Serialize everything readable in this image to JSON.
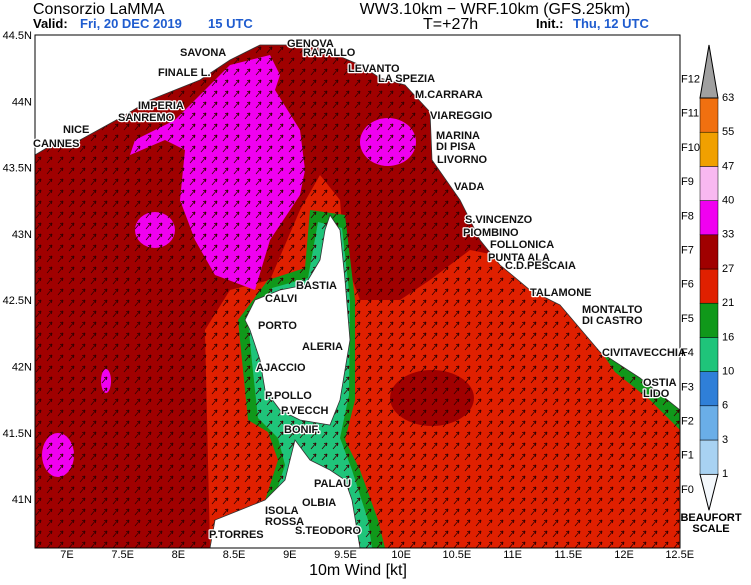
{
  "header": {
    "title": "Consorzio LaMMA",
    "valid_label": "Valid:",
    "valid_date": "Fri, 20 DEC 2019",
    "valid_time": "15 UTC",
    "model": "WW3.10km − WRF.10km (GFS.25km)",
    "time_step": "T=+27h",
    "init_label": "Init.:",
    "init_value": "Thu, 12 UTC"
  },
  "axes": {
    "x_ticks": [
      "7E",
      "7.5E",
      "8E",
      "8.5E",
      "9E",
      "9.5E",
      "10E",
      "10.5E",
      "11E",
      "11.5E",
      "12E",
      "12.5E"
    ],
    "y_ticks": [
      "44.5N",
      "44N",
      "43.5N",
      "43N",
      "42.5N",
      "42N",
      "41.5N",
      "41N"
    ],
    "x_title": "10m Wind [kt]"
  },
  "places": [
    {
      "lines": [
        "GENOVA"
      ]
    },
    {
      "lines": [
        "SAVONA"
      ]
    },
    {
      "lines": [
        "RAPALLO"
      ]
    },
    {
      "lines": [
        "FINALE L."
      ]
    },
    {
      "lines": [
        "LEVANTO"
      ]
    },
    {
      "lines": [
        "LA SPEZIA"
      ]
    },
    {
      "lines": [
        "M.CARRARA"
      ]
    },
    {
      "lines": [
        "IMPERIA"
      ]
    },
    {
      "lines": [
        "SANREMO"
      ]
    },
    {
      "lines": [
        "VIAREGGIO"
      ]
    },
    {
      "lines": [
        "NICE"
      ]
    },
    {
      "lines": [
        "MARINA",
        "DI PISA"
      ]
    },
    {
      "lines": [
        "CANNES"
      ]
    },
    {
      "lines": [
        "LIVORNO"
      ]
    },
    {
      "lines": [
        "VADA"
      ]
    },
    {
      "lines": [
        "S.VINCENZO"
      ]
    },
    {
      "lines": [
        "PIOMBINO"
      ]
    },
    {
      "lines": [
        "FOLLONICA"
      ]
    },
    {
      "lines": [
        "PUNTA ALA"
      ]
    },
    {
      "lines": [
        "C.D.PESCAIA"
      ]
    },
    {
      "lines": [
        "BASTIA"
      ]
    },
    {
      "lines": [
        "TALAMONE"
      ]
    },
    {
      "lines": [
        "CALVI"
      ]
    },
    {
      "lines": [
        "MONTALTO",
        "DI CASTRO"
      ]
    },
    {
      "lines": [
        "PORTO"
      ]
    },
    {
      "lines": [
        "ALERIA"
      ]
    },
    {
      "lines": [
        "CIVITAVECCHIA"
      ]
    },
    {
      "lines": [
        "AJACCIO"
      ]
    },
    {
      "lines": [
        "OSTIA",
        "LIDO"
      ]
    },
    {
      "lines": [
        "P.POLLO"
      ]
    },
    {
      "lines": [
        "P.VECCH"
      ]
    },
    {
      "lines": [
        "BONIF."
      ]
    },
    {
      "lines": [
        "PALAU"
      ]
    },
    {
      "lines": [
        "OLBIA"
      ]
    },
    {
      "lines": [
        "ISOLA",
        "ROSSA"
      ]
    },
    {
      "lines": [
        "P.TORRES"
      ]
    },
    {
      "lines": [
        "S.TEODORO"
      ]
    }
  ],
  "colorbar": {
    "thresholds": [
      1,
      3,
      6,
      10,
      16,
      21,
      27,
      33,
      40,
      47,
      55,
      63
    ],
    "beaufort": [
      "F0",
      "F1",
      "F2",
      "F3",
      "F4",
      "F5",
      "F6",
      "F7",
      "F8",
      "F9",
      "F10",
      "F11",
      "F12"
    ],
    "colors": [
      "#f4f8fc",
      "#a8d2f2",
      "#6aaee8",
      "#2f7fd8",
      "#1fc47a",
      "#10981a",
      "#e02000",
      "#a00000",
      "#f000f0",
      "#f8b8f0",
      "#f0a000",
      "#f07010",
      "#a0a0a0"
    ],
    "title_lines": [
      "BEAUFORT",
      "SCALE"
    ]
  }
}
